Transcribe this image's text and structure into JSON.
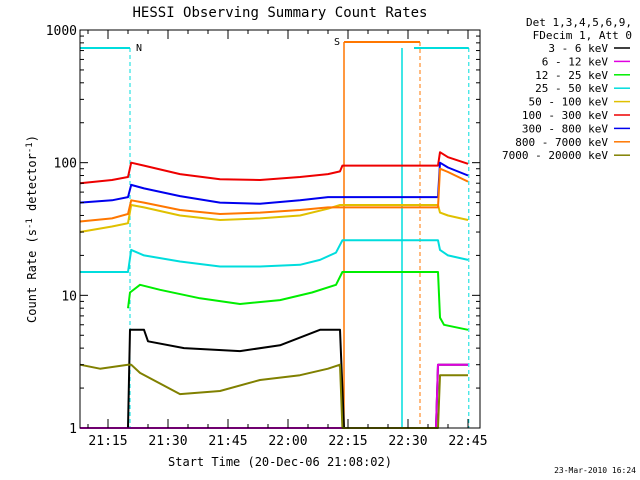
{
  "chart_data": {
    "type": "line",
    "title": "HESSI Observing Summary Count Rates",
    "xlabel": "Start Time (20-Dec-06 21:08:02)",
    "ylabel_main": "Count Rate (s",
    "ylabel_sup1": "-1",
    "ylabel_mid": " detector",
    "ylabel_sup2": "-1",
    "ylabel_end": ")",
    "yscale": "log",
    "ylim": [
      1,
      1000
    ],
    "xlim_minutes": [
      0,
      100
    ],
    "x_ticks": [
      {
        "label": "21:15",
        "t": 7
      },
      {
        "label": "21:30",
        "t": 22
      },
      {
        "label": "21:45",
        "t": 37
      },
      {
        "label": "22:00",
        "t": 52
      },
      {
        "label": "22:15",
        "t": 67
      },
      {
        "label": "22:30",
        "t": 82
      },
      {
        "label": "22:45",
        "t": 97
      }
    ],
    "y_ticks": [
      {
        "label": "1",
        "v": 1
      },
      {
        "label": "10",
        "v": 10
      },
      {
        "label": "100",
        "v": 100
      },
      {
        "label": "1000",
        "v": 1000
      }
    ],
    "legend_header": [
      "Det 1,3,4,5,6,9,",
      "FDecim 1, Att 0"
    ],
    "series": [
      {
        "name": "3 - 6 keV",
        "color": "#000000",
        "points": [
          [
            0,
            1
          ],
          [
            12,
            1
          ],
          [
            12.5,
            5.5
          ],
          [
            16,
            5.5
          ],
          [
            17,
            4.5
          ],
          [
            26,
            4
          ],
          [
            40,
            3.8
          ],
          [
            50,
            4.2
          ],
          [
            55,
            4.8
          ],
          [
            60,
            5.5
          ],
          [
            65,
            5.5
          ],
          [
            66,
            1
          ],
          [
            89,
            1
          ],
          [
            89.5,
            3
          ],
          [
            97,
            3
          ]
        ]
      },
      {
        "name": "6 - 12 keV",
        "color": "#e000e0",
        "points": [
          [
            0,
            1
          ],
          [
            89,
            1
          ],
          [
            89.5,
            3
          ],
          [
            97,
            3
          ]
        ]
      },
      {
        "name": "12 - 25 keV",
        "color": "#00ee00",
        "points": [
          [
            12,
            8
          ],
          [
            12.5,
            10.5
          ],
          [
            15,
            12
          ],
          [
            20,
            11
          ],
          [
            30,
            9.5
          ],
          [
            40,
            8.6
          ],
          [
            50,
            9.2
          ],
          [
            58,
            10.5
          ],
          [
            64,
            12
          ],
          [
            65.6,
            15
          ],
          [
            89.5,
            15
          ],
          [
            90,
            6.8
          ],
          [
            91,
            6
          ],
          [
            97,
            5.5
          ]
        ]
      },
      {
        "name": "25 - 50 keV",
        "color": "#00dddd",
        "points": [
          [
            0,
            15
          ],
          [
            12,
            15
          ],
          [
            12.8,
            22
          ],
          [
            16,
            20
          ],
          [
            25,
            18
          ],
          [
            35,
            16.5
          ],
          [
            45,
            16.5
          ],
          [
            55,
            17
          ],
          [
            60,
            18.5
          ],
          [
            64,
            21
          ],
          [
            65.6,
            26
          ],
          [
            89.5,
            26
          ],
          [
            90,
            22
          ],
          [
            92,
            20
          ],
          [
            97,
            18.5
          ]
        ]
      },
      {
        "name": "50 - 100 keV",
        "color": "#e0c000",
        "points": [
          [
            0,
            30
          ],
          [
            8,
            33
          ],
          [
            12,
            35
          ],
          [
            12.8,
            48
          ],
          [
            16,
            46
          ],
          [
            25,
            40
          ],
          [
            35,
            37
          ],
          [
            45,
            38
          ],
          [
            55,
            40
          ],
          [
            62,
            45
          ],
          [
            65,
            48
          ],
          [
            89.5,
            48
          ],
          [
            90,
            42
          ],
          [
            92,
            40
          ],
          [
            97,
            37
          ]
        ]
      },
      {
        "name": "100 - 300 keV",
        "color": "#ee0000",
        "points": [
          [
            0,
            70
          ],
          [
            8,
            74
          ],
          [
            12,
            78
          ],
          [
            12.8,
            100
          ],
          [
            16,
            95
          ],
          [
            25,
            82
          ],
          [
            35,
            75
          ],
          [
            45,
            74
          ],
          [
            55,
            78
          ],
          [
            62,
            82
          ],
          [
            65,
            86
          ],
          [
            65.6,
            95
          ],
          [
            89.5,
            95
          ],
          [
            90,
            120
          ],
          [
            92,
            110
          ],
          [
            97,
            98
          ]
        ]
      },
      {
        "name": "300 - 800 keV",
        "color": "#0000ee",
        "points": [
          [
            0,
            50
          ],
          [
            8,
            52
          ],
          [
            12,
            55
          ],
          [
            12.8,
            68
          ],
          [
            16,
            64
          ],
          [
            25,
            56
          ],
          [
            35,
            50
          ],
          [
            45,
            49
          ],
          [
            55,
            52
          ],
          [
            62,
            55
          ],
          [
            65,
            55
          ],
          [
            89.5,
            55
          ],
          [
            90,
            100
          ],
          [
            92,
            92
          ],
          [
            97,
            80
          ]
        ]
      },
      {
        "name": "800 - 7000 keV",
        "color": "#ff7700",
        "points": [
          [
            0,
            36
          ],
          [
            8,
            38
          ],
          [
            12,
            41
          ],
          [
            12.8,
            52
          ],
          [
            16,
            50
          ],
          [
            25,
            44
          ],
          [
            35,
            41
          ],
          [
            45,
            42
          ],
          [
            55,
            44
          ],
          [
            62,
            46
          ],
          [
            65,
            46
          ],
          [
            89.5,
            46
          ],
          [
            90,
            90
          ],
          [
            92,
            85
          ],
          [
            97,
            72
          ]
        ]
      },
      {
        "name": "7000 - 20000 keV",
        "color": "#808000",
        "points": [
          [
            0,
            3
          ],
          [
            5,
            2.8
          ],
          [
            12,
            3
          ],
          [
            12.8,
            3
          ],
          [
            15,
            2.6
          ],
          [
            25,
            1.8
          ],
          [
            35,
            1.9
          ],
          [
            45,
            2.3
          ],
          [
            55,
            2.5
          ],
          [
            62,
            2.8
          ],
          [
            65,
            3
          ],
          [
            65.6,
            1
          ],
          [
            89.5,
            1
          ],
          [
            90,
            2.5
          ],
          [
            97,
            2.5
          ]
        ]
      }
    ],
    "annotations": [
      {
        "text": "N",
        "color": "#00dddd"
      },
      {
        "text": "S",
        "color": "#ff7700"
      }
    ],
    "footer_date": "23-Mar-2010 16:24"
  }
}
